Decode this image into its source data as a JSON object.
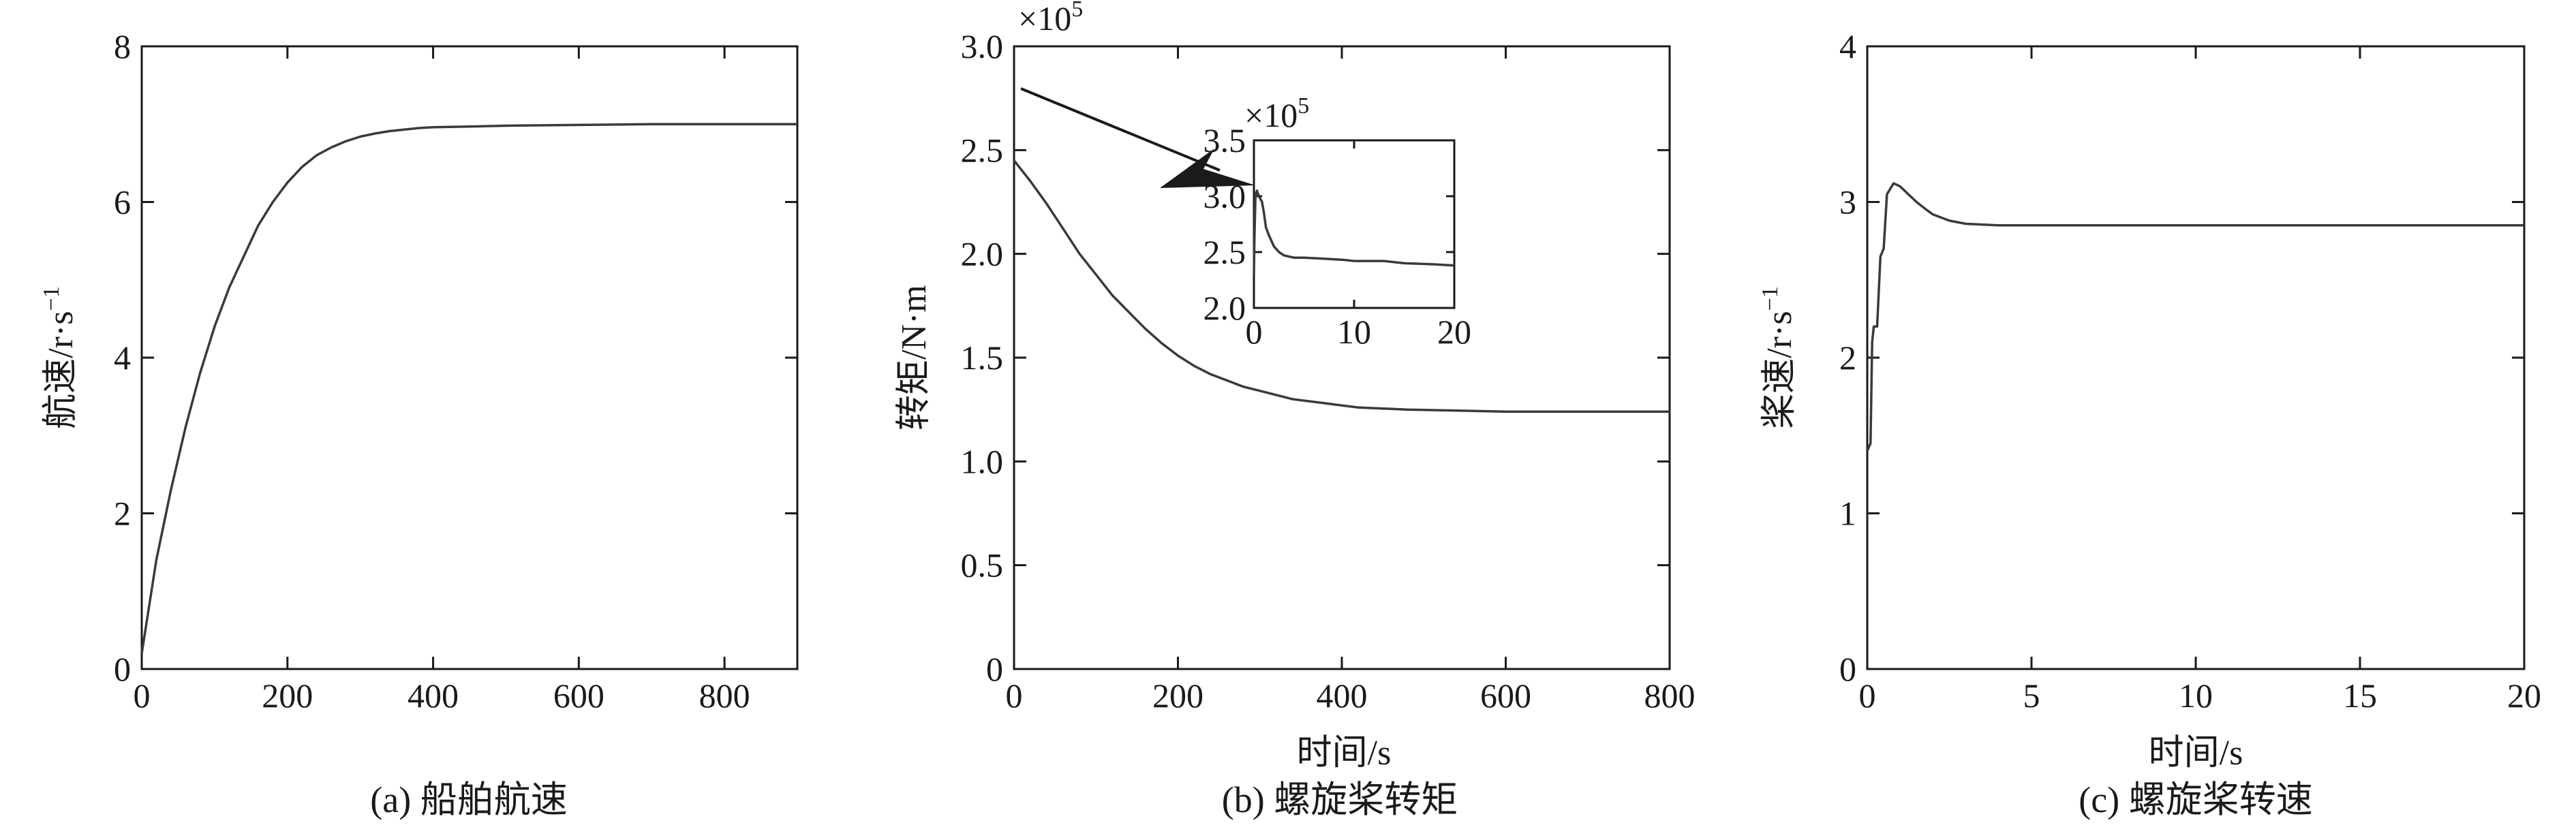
{
  "chart_data": [
    {
      "id": "a",
      "type": "line",
      "caption": "(a) 船舶航速",
      "xlabel": "",
      "ylabel": "航速/r·s",
      "ylabel_sup": "−1",
      "xlim": [
        0,
        900
      ],
      "ylim": [
        0,
        8
      ],
      "xticks": [
        0,
        200,
        400,
        600,
        800
      ],
      "xtick_labels": [
        "0",
        "200",
        "400",
        "600",
        "800"
      ],
      "yticks": [
        0,
        2,
        4,
        6,
        8
      ],
      "ytick_labels": [
        "0",
        "2",
        "4",
        "6",
        "8"
      ],
      "grid": false,
      "series": [
        {
          "x": [
            0,
            10,
            20,
            40,
            60,
            80,
            100,
            120,
            140,
            160,
            180,
            200,
            220,
            240,
            260,
            280,
            300,
            320,
            340,
            360,
            380,
            400,
            450,
            500,
            600,
            700,
            800,
            900
          ],
          "y": [
            0.2,
            0.8,
            1.4,
            2.3,
            3.1,
            3.8,
            4.4,
            4.9,
            5.3,
            5.7,
            6.0,
            6.25,
            6.45,
            6.6,
            6.7,
            6.78,
            6.84,
            6.88,
            6.91,
            6.93,
            6.95,
            6.96,
            6.97,
            6.98,
            6.99,
            7.0,
            7.0,
            7.0
          ]
        }
      ]
    },
    {
      "id": "b",
      "type": "line",
      "caption": "(b) 螺旋桨转矩",
      "xlabel": "时间/s",
      "ylabel": "转矩/N·m",
      "multiplier": "×10",
      "multiplier_exp": "5",
      "xlim": [
        0,
        800
      ],
      "ylim": [
        0,
        3.0
      ],
      "xticks": [
        0,
        200,
        400,
        600,
        800
      ],
      "xtick_labels": [
        "0",
        "200",
        "400",
        "600",
        "800"
      ],
      "yticks": [
        0,
        0.5,
        1.0,
        1.5,
        2.0,
        2.5,
        3.0
      ],
      "ytick_labels": [
        "0",
        "0.5",
        "1.0",
        "1.5",
        "2.0",
        "2.5",
        "3.0"
      ],
      "grid": false,
      "series": [
        {
          "x": [
            0,
            20,
            40,
            60,
            80,
            100,
            120,
            140,
            160,
            180,
            200,
            220,
            240,
            260,
            280,
            300,
            320,
            340,
            360,
            380,
            400,
            420,
            480,
            600,
            700,
            800
          ],
          "y": [
            2.45,
            2.35,
            2.24,
            2.12,
            2.0,
            1.9,
            1.8,
            1.72,
            1.64,
            1.57,
            1.51,
            1.46,
            1.42,
            1.39,
            1.36,
            1.34,
            1.32,
            1.3,
            1.29,
            1.28,
            1.27,
            1.26,
            1.25,
            1.24,
            1.24,
            1.24
          ]
        }
      ],
      "inset": {
        "multiplier": "×10",
        "multiplier_exp": "5",
        "xlim": [
          0,
          20
        ],
        "ylim": [
          2.0,
          3.5
        ],
        "xticks": [
          0,
          10,
          20
        ],
        "xtick_labels": [
          "0",
          "10",
          "20"
        ],
        "yticks": [
          2.0,
          2.5,
          3.0,
          3.5
        ],
        "ytick_labels": [
          "2.0",
          "2.5",
          "3.0",
          "3.5"
        ],
        "series": [
          {
            "x": [
              0,
              0.05,
              0.15,
              0.3,
              0.5,
              0.8,
              1.0,
              1.2,
              1.5,
              2.0,
              2.5,
              3.0,
              4.0,
              5.0,
              7.0,
              9.0,
              10.0,
              13.0,
              15.0,
              18.0,
              20.0
            ],
            "y": [
              2.3,
              2.6,
              3.0,
              3.05,
              3.0,
              2.95,
              2.85,
              2.72,
              2.65,
              2.55,
              2.5,
              2.47,
              2.45,
              2.45,
              2.44,
              2.43,
              2.42,
              2.42,
              2.4,
              2.39,
              2.38
            ]
          }
        ]
      },
      "annotation": "arrow"
    },
    {
      "id": "c",
      "type": "line",
      "caption": "(c) 螺旋桨转速",
      "xlabel": "时间/s",
      "ylabel": "桨速/r·s",
      "ylabel_sup": "−1",
      "xlim": [
        0,
        20
      ],
      "ylim": [
        0,
        4
      ],
      "xticks": [
        0,
        5,
        10,
        15,
        20
      ],
      "xtick_labels": [
        "0",
        "5",
        "10",
        "15",
        "20"
      ],
      "yticks": [
        0,
        1,
        2,
        3,
        4
      ],
      "ytick_labels": [
        "0",
        "1",
        "2",
        "3",
        "4"
      ],
      "grid": false,
      "series": [
        {
          "x": [
            0,
            0.1,
            0.15,
            0.2,
            0.3,
            0.4,
            0.5,
            0.6,
            0.8,
            1.0,
            1.2,
            1.5,
            1.8,
            2.0,
            2.5,
            3.0,
            4.0,
            6.0,
            10.0,
            15.0,
            20.0
          ],
          "y": [
            1.4,
            1.45,
            2.1,
            2.2,
            2.2,
            2.65,
            2.7,
            3.05,
            3.12,
            3.1,
            3.06,
            3.0,
            2.95,
            2.92,
            2.88,
            2.86,
            2.85,
            2.85,
            2.85,
            2.85,
            2.85
          ]
        }
      ]
    }
  ]
}
